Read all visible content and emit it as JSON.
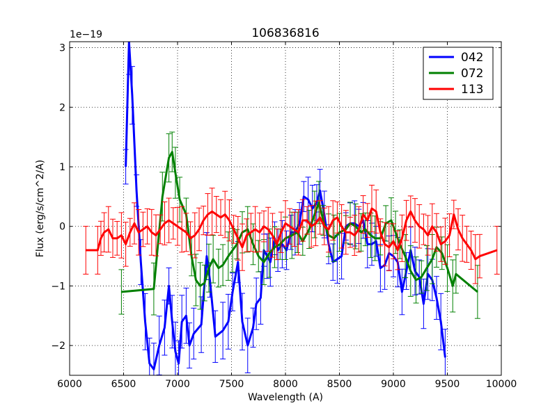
{
  "chart_data": {
    "type": "line",
    "title": "106836816",
    "xlabel": "Wavelength (A)",
    "ylabel": "Flux (erg/s/cm^2/A)",
    "offset_label": "1e−19",
    "xlim": [
      6000,
      10000
    ],
    "ylim": [
      -2.5,
      3.1
    ],
    "xticks": [
      6000,
      6500,
      7000,
      7500,
      8000,
      8500,
      9000,
      9500,
      10000
    ],
    "yticks": [
      -2,
      -1,
      0,
      1,
      2,
      3
    ],
    "xtick_labels": [
      "6000",
      "6500",
      "7000",
      "7500",
      "8000",
      "8500",
      "9000",
      "9500",
      "10000"
    ],
    "ytick_labels": [
      "−2",
      "−1",
      "0",
      "1",
      "2",
      "3"
    ],
    "grid": true,
    "legend_position": "top-right",
    "series": [
      {
        "name": "042",
        "color": "#0000ff",
        "x": [
          6520,
          6550,
          6580,
          6620,
          6660,
          6700,
          6740,
          6780,
          6830,
          6880,
          6920,
          6950,
          6980,
          7010,
          7040,
          7080,
          7110,
          7150,
          7220,
          7270,
          7300,
          7350,
          7420,
          7470,
          7510,
          7560,
          7600,
          7650,
          7700,
          7730,
          7770,
          7800,
          7830,
          7860,
          7900,
          7930,
          7970,
          8010,
          8050,
          8090,
          8130,
          8170,
          8210,
          8250,
          8290,
          8320,
          8360,
          8400,
          8440,
          8480,
          8520,
          8560,
          8600,
          8640,
          8680,
          8720,
          8760,
          8800,
          8840,
          8880,
          8920,
          8960,
          9000,
          9040,
          9080,
          9120,
          9160,
          9200,
          9240,
          9280,
          9320,
          9360,
          9400,
          9440,
          9480
        ],
        "y": [
          1.0,
          3.1,
          2.2,
          0.6,
          -0.6,
          -1.6,
          -2.3,
          -2.4,
          -2.0,
          -1.7,
          -1.0,
          -1.6,
          -2.1,
          -2.3,
          -1.6,
          -1.5,
          -2.0,
          -1.8,
          -1.65,
          -0.5,
          -0.9,
          -1.85,
          -1.75,
          -1.6,
          -1.1,
          -0.6,
          -1.6,
          -2.0,
          -1.7,
          -1.3,
          -1.2,
          -0.4,
          -0.5,
          -0.6,
          -0.2,
          -0.4,
          -0.3,
          -0.4,
          -0.1,
          -0.1,
          0.05,
          0.5,
          0.45,
          0.3,
          0.4,
          0.6,
          0.2,
          -0.3,
          -0.6,
          -0.55,
          -0.5,
          0.0,
          0.05,
          0.05,
          0.0,
          0.1,
          -0.3,
          -0.3,
          -0.25,
          -0.7,
          -0.65,
          -0.45,
          -0.5,
          -0.6,
          -1.1,
          -0.75,
          -0.4,
          -0.75,
          -0.85,
          -1.3,
          -0.8,
          -0.9,
          -1.2,
          -1.6,
          -2.2
        ]
      },
      {
        "name": "072",
        "color": "#008000",
        "x": [
          6480,
          6780,
          6860,
          6920,
          6950,
          6980,
          7020,
          7080,
          7130,
          7170,
          7210,
          7250,
          7290,
          7330,
          7380,
          7420,
          7470,
          7510,
          7550,
          7600,
          7650,
          7700,
          7750,
          7800,
          7850,
          7900,
          7950,
          8000,
          8060,
          8110,
          8160,
          8220,
          8270,
          8310,
          8350,
          8400,
          8450,
          8500,
          8560,
          8600,
          8650,
          8700,
          8740,
          8790,
          8830,
          8880,
          8930,
          8980,
          9020,
          9060,
          9110,
          9160,
          9210,
          9260,
          9310,
          9360,
          9400,
          9450,
          9500,
          9550,
          9580,
          9780
        ],
        "y": [
          -1.1,
          -1.05,
          0.5,
          1.15,
          1.25,
          0.9,
          0.45,
          0.2,
          -0.5,
          -0.9,
          -1.0,
          -0.95,
          -0.7,
          -0.55,
          -0.7,
          -0.65,
          -0.5,
          -0.4,
          -0.3,
          -0.1,
          -0.05,
          -0.3,
          -0.5,
          -0.6,
          -0.45,
          -0.35,
          -0.3,
          -0.2,
          -0.15,
          -0.1,
          -0.25,
          -0.05,
          0.2,
          0.4,
          0.1,
          -0.15,
          -0.2,
          -0.1,
          -0.05,
          0.05,
          0.0,
          -0.1,
          -0.05,
          -0.15,
          -0.2,
          -0.2,
          0.05,
          0.1,
          -0.1,
          -0.3,
          -0.5,
          -0.75,
          -0.9,
          -0.85,
          -0.7,
          -0.55,
          -0.35,
          -0.45,
          -0.7,
          -1.0,
          -0.8,
          -1.1
        ]
      },
      {
        "name": "113",
        "color": "#ff0000",
        "x": [
          6150,
          6260,
          6290,
          6320,
          6360,
          6400,
          6440,
          6480,
          6520,
          6560,
          6600,
          6640,
          6680,
          6720,
          6760,
          6800,
          6840,
          6880,
          6920,
          6960,
          7000,
          7040,
          7080,
          7120,
          7160,
          7200,
          7240,
          7280,
          7320,
          7360,
          7400,
          7440,
          7480,
          7520,
          7560,
          7600,
          7640,
          7680,
          7720,
          7760,
          7800,
          7840,
          7880,
          7920,
          7960,
          8000,
          8040,
          8080,
          8120,
          8160,
          8200,
          8240,
          8280,
          8320,
          8360,
          8400,
          8440,
          8480,
          8520,
          8560,
          8600,
          8640,
          8680,
          8720,
          8760,
          8800,
          8840,
          8880,
          8920,
          8960,
          9000,
          9040,
          9080,
          9120,
          9160,
          9200,
          9240,
          9280,
          9320,
          9360,
          9400,
          9440,
          9480,
          9520,
          9560,
          9600,
          9640,
          9680,
          9720,
          9760,
          9800,
          9960
        ],
        "y": [
          -0.4,
          -0.4,
          -0.2,
          -0.1,
          -0.05,
          -0.2,
          -0.2,
          -0.15,
          -0.3,
          -0.1,
          0.05,
          -0.1,
          -0.05,
          0.0,
          -0.1,
          -0.15,
          -0.05,
          0.05,
          0.1,
          0.05,
          0.0,
          -0.05,
          -0.1,
          -0.2,
          -0.15,
          -0.05,
          0.1,
          0.2,
          0.25,
          0.2,
          0.15,
          0.2,
          0.1,
          -0.05,
          -0.2,
          -0.35,
          -0.15,
          -0.1,
          -0.05,
          -0.1,
          0.0,
          -0.05,
          -0.15,
          -0.3,
          -0.1,
          0.05,
          0.0,
          -0.05,
          -0.1,
          0.1,
          0.1,
          0.0,
          0.05,
          0.15,
          0.0,
          -0.05,
          0.1,
          0.15,
          0.0,
          -0.1,
          -0.1,
          -0.15,
          -0.05,
          0.2,
          0.1,
          0.3,
          0.25,
          -0.1,
          -0.3,
          -0.35,
          -0.25,
          -0.4,
          -0.2,
          0.1,
          0.25,
          0.1,
          0.0,
          -0.05,
          -0.15,
          0.0,
          -0.1,
          -0.3,
          -0.25,
          -0.15,
          0.2,
          -0.05,
          -0.2,
          -0.3,
          -0.4,
          -0.55,
          -0.5,
          -0.4
        ]
      }
    ]
  }
}
